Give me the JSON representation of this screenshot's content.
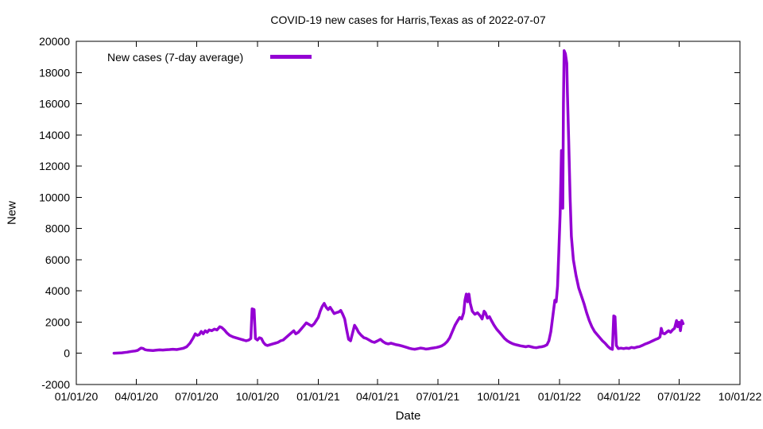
{
  "title": "COVID-19 new cases for Harris,Texas as of 2022-07-07",
  "legend": {
    "label": "New cases (7-day average)"
  },
  "axes": {
    "x_label": "Date",
    "y_label": "New",
    "x_ticks": [
      "01/01/20",
      "04/01/20",
      "07/01/20",
      "10/01/20",
      "01/01/21",
      "04/01/21",
      "07/01/21",
      "10/01/21",
      "01/01/22",
      "04/01/22",
      "07/01/22",
      "10/01/22"
    ],
    "y_ticks": [
      -2000,
      0,
      2000,
      4000,
      6000,
      8000,
      10000,
      12000,
      14000,
      16000,
      18000,
      20000
    ],
    "x_range": [
      "01/01/20",
      "10/01/22"
    ],
    "y_min": -2000,
    "y_max": 20000
  },
  "style": {
    "line_color": "#9400d3",
    "line_width": 3.5,
    "axis_color": "#000000",
    "background": "#ffffff"
  },
  "chart_data": {
    "type": "line",
    "title": "COVID-19 new cases for Harris,Texas as of 2022-07-07",
    "xlabel": "Date",
    "ylabel": "New",
    "ylim": [
      -2000,
      20000
    ],
    "x_range": [
      "01/01/20",
      "10/01/22"
    ],
    "grid": false,
    "legend_position": "top-left-inside",
    "series": [
      {
        "name": "New cases (7-day average)",
        "color": "#9400d3",
        "points": [
          [
            "02/27/20",
            5
          ],
          [
            "03/04/20",
            15
          ],
          [
            "03/10/20",
            30
          ],
          [
            "03/14/20",
            50
          ],
          [
            "03/18/20",
            75
          ],
          [
            "03/22/20",
            105
          ],
          [
            "03/26/20",
            130
          ],
          [
            "03/30/20",
            150
          ],
          [
            "04/03/20",
            190
          ],
          [
            "04/06/20",
            280
          ],
          [
            "04/08/20",
            340
          ],
          [
            "04/11/20",
            310
          ],
          [
            "04/14/20",
            230
          ],
          [
            "04/18/20",
            200
          ],
          [
            "04/22/20",
            190
          ],
          [
            "04/26/20",
            180
          ],
          [
            "05/01/20",
            200
          ],
          [
            "05/06/20",
            220
          ],
          [
            "05/11/20",
            210
          ],
          [
            "05/16/20",
            230
          ],
          [
            "05/21/20",
            240
          ],
          [
            "05/26/20",
            260
          ],
          [
            "06/01/20",
            240
          ],
          [
            "06/06/20",
            280
          ],
          [
            "06/11/20",
            320
          ],
          [
            "06/16/20",
            420
          ],
          [
            "06/21/20",
            650
          ],
          [
            "06/26/20",
            1000
          ],
          [
            "06/29/20",
            1250
          ],
          [
            "07/02/20",
            1150
          ],
          [
            "07/05/20",
            1200
          ],
          [
            "07/08/20",
            1400
          ],
          [
            "07/11/20",
            1250
          ],
          [
            "07/14/20",
            1450
          ],
          [
            "07/17/20",
            1350
          ],
          [
            "07/20/20",
            1500
          ],
          [
            "07/24/20",
            1450
          ],
          [
            "07/28/20",
            1550
          ],
          [
            "08/01/20",
            1500
          ],
          [
            "08/05/20",
            1700
          ],
          [
            "08/08/20",
            1650
          ],
          [
            "08/12/20",
            1500
          ],
          [
            "08/16/20",
            1300
          ],
          [
            "08/20/20",
            1150
          ],
          [
            "08/25/20",
            1050
          ],
          [
            "08/29/20",
            1000
          ],
          [
            "09/02/20",
            950
          ],
          [
            "09/06/20",
            900
          ],
          [
            "09/10/20",
            850
          ],
          [
            "09/14/20",
            800
          ],
          [
            "09/18/20",
            850
          ],
          [
            "09/21/20",
            950
          ],
          [
            "09/23/20",
            2850
          ],
          [
            "09/26/20",
            2800
          ],
          [
            "09/28/20",
            950
          ],
          [
            "10/01/20",
            850
          ],
          [
            "10/04/20",
            1000
          ],
          [
            "10/07/20",
            950
          ],
          [
            "10/10/20",
            700
          ],
          [
            "10/13/20",
            550
          ],
          [
            "10/16/20",
            500
          ],
          [
            "10/20/20",
            550
          ],
          [
            "10/24/20",
            600
          ],
          [
            "10/28/20",
            650
          ],
          [
            "11/01/20",
            700
          ],
          [
            "11/05/20",
            800
          ],
          [
            "11/09/20",
            850
          ],
          [
            "11/13/20",
            1000
          ],
          [
            "11/17/20",
            1150
          ],
          [
            "11/21/20",
            1300
          ],
          [
            "11/25/20",
            1450
          ],
          [
            "11/28/20",
            1250
          ],
          [
            "12/02/20",
            1350
          ],
          [
            "12/06/20",
            1550
          ],
          [
            "12/10/20",
            1750
          ],
          [
            "12/14/20",
            1950
          ],
          [
            "12/18/20",
            1850
          ],
          [
            "12/22/20",
            1750
          ],
          [
            "12/26/20",
            1900
          ],
          [
            "12/29/20",
            2100
          ],
          [
            "01/01/21",
            2300
          ],
          [
            "01/04/21",
            2700
          ],
          [
            "01/07/21",
            3000
          ],
          [
            "01/10/21",
            3200
          ],
          [
            "01/13/21",
            2950
          ],
          [
            "01/16/21",
            2800
          ],
          [
            "01/19/21",
            2950
          ],
          [
            "01/22/21",
            2750
          ],
          [
            "01/25/21",
            2550
          ],
          [
            "01/28/21",
            2600
          ],
          [
            "02/01/21",
            2650
          ],
          [
            "02/04/21",
            2750
          ],
          [
            "02/07/21",
            2500
          ],
          [
            "02/10/21",
            2200
          ],
          [
            "02/13/21",
            1500
          ],
          [
            "02/16/21",
            900
          ],
          [
            "02/19/21",
            800
          ],
          [
            "02/22/21",
            1300
          ],
          [
            "02/25/21",
            1800
          ],
          [
            "02/28/21",
            1600
          ],
          [
            "03/03/21",
            1350
          ],
          [
            "03/07/21",
            1150
          ],
          [
            "03/11/21",
            1000
          ],
          [
            "03/15/21",
            950
          ],
          [
            "03/19/21",
            850
          ],
          [
            "03/23/21",
            750
          ],
          [
            "03/27/21",
            700
          ],
          [
            "04/01/21",
            800
          ],
          [
            "04/05/21",
            900
          ],
          [
            "04/09/21",
            750
          ],
          [
            "04/13/21",
            650
          ],
          [
            "04/17/21",
            600
          ],
          [
            "04/21/21",
            650
          ],
          [
            "04/25/21",
            600
          ],
          [
            "04/29/21",
            550
          ],
          [
            "05/03/21",
            520
          ],
          [
            "05/07/21",
            480
          ],
          [
            "05/11/21",
            430
          ],
          [
            "05/15/21",
            380
          ],
          [
            "05/19/21",
            320
          ],
          [
            "05/23/21",
            280
          ],
          [
            "05/27/21",
            260
          ],
          [
            "06/01/21",
            300
          ],
          [
            "06/05/21",
            340
          ],
          [
            "06/09/21",
            310
          ],
          [
            "06/13/21",
            270
          ],
          [
            "06/17/21",
            290
          ],
          [
            "06/21/21",
            320
          ],
          [
            "06/25/21",
            350
          ],
          [
            "06/29/21",
            380
          ],
          [
            "07/03/21",
            420
          ],
          [
            "07/07/21",
            480
          ],
          [
            "07/11/21",
            580
          ],
          [
            "07/15/21",
            750
          ],
          [
            "07/19/21",
            1000
          ],
          [
            "07/23/21",
            1400
          ],
          [
            "07/27/21",
            1800
          ],
          [
            "07/31/21",
            2100
          ],
          [
            "08/03/21",
            2300
          ],
          [
            "08/06/21",
            2200
          ],
          [
            "08/09/21",
            2600
          ],
          [
            "08/11/21",
            3400
          ],
          [
            "08/13/21",
            3800
          ],
          [
            "08/15/21",
            3300
          ],
          [
            "08/17/21",
            3800
          ],
          [
            "08/19/21",
            3200
          ],
          [
            "08/22/21",
            2700
          ],
          [
            "08/26/21",
            2500
          ],
          [
            "08/30/21",
            2600
          ],
          [
            "09/03/21",
            2400
          ],
          [
            "09/06/21",
            2200
          ],
          [
            "09/09/21",
            2700
          ],
          [
            "09/11/21",
            2600
          ],
          [
            "09/14/21",
            2250
          ],
          [
            "09/17/21",
            2350
          ],
          [
            "09/20/21",
            2100
          ],
          [
            "09/24/21",
            1800
          ],
          [
            "09/28/21",
            1550
          ],
          [
            "10/02/21",
            1350
          ],
          [
            "10/06/21",
            1150
          ],
          [
            "10/10/21",
            950
          ],
          [
            "10/14/21",
            800
          ],
          [
            "10/18/21",
            700
          ],
          [
            "10/22/21",
            620
          ],
          [
            "10/26/21",
            560
          ],
          [
            "10/30/21",
            520
          ],
          [
            "11/03/21",
            480
          ],
          [
            "11/07/21",
            450
          ],
          [
            "11/11/21",
            420
          ],
          [
            "11/15/21",
            460
          ],
          [
            "11/19/21",
            420
          ],
          [
            "11/23/21",
            380
          ],
          [
            "11/27/21",
            360
          ],
          [
            "12/01/21",
            400
          ],
          [
            "12/05/21",
            420
          ],
          [
            "12/09/21",
            460
          ],
          [
            "12/13/21",
            550
          ],
          [
            "12/16/21",
            800
          ],
          [
            "12/19/21",
            1400
          ],
          [
            "12/22/21",
            2400
          ],
          [
            "12/25/21",
            3400
          ],
          [
            "12/27/21",
            3300
          ],
          [
            "12/29/21",
            4300
          ],
          [
            "12/31/21",
            6500
          ],
          [
            "01/02/22",
            9000
          ],
          [
            "01/04/22",
            13000
          ],
          [
            "01/05/22",
            12800
          ],
          [
            "01/06/22",
            9300
          ],
          [
            "01/07/22",
            16000
          ],
          [
            "01/08/22",
            19400
          ],
          [
            "01/10/22",
            19200
          ],
          [
            "01/12/22",
            18600
          ],
          [
            "01/13/22",
            16700
          ],
          [
            "01/15/22",
            13500
          ],
          [
            "01/17/22",
            10000
          ],
          [
            "01/19/22",
            7500
          ],
          [
            "01/22/22",
            6000
          ],
          [
            "01/26/22",
            5000
          ],
          [
            "01/30/22",
            4200
          ],
          [
            "02/03/22",
            3700
          ],
          [
            "02/07/22",
            3200
          ],
          [
            "02/11/22",
            2600
          ],
          [
            "02/15/22",
            2100
          ],
          [
            "02/19/22",
            1700
          ],
          [
            "02/23/22",
            1400
          ],
          [
            "02/27/22",
            1200
          ],
          [
            "03/03/22",
            1000
          ],
          [
            "03/07/22",
            800
          ],
          [
            "03/11/22",
            650
          ],
          [
            "03/15/22",
            450
          ],
          [
            "03/19/22",
            300
          ],
          [
            "03/22/22",
            250
          ],
          [
            "03/24/22",
            2400
          ],
          [
            "03/26/22",
            2350
          ],
          [
            "03/28/22",
            500
          ],
          [
            "03/31/22",
            300
          ],
          [
            "04/04/22",
            330
          ],
          [
            "04/08/22",
            300
          ],
          [
            "04/12/22",
            340
          ],
          [
            "04/16/22",
            310
          ],
          [
            "04/20/22",
            380
          ],
          [
            "04/24/22",
            350
          ],
          [
            "04/28/22",
            400
          ],
          [
            "05/02/22",
            430
          ],
          [
            "05/06/22",
            500
          ],
          [
            "05/10/22",
            580
          ],
          [
            "05/14/22",
            650
          ],
          [
            "05/18/22",
            720
          ],
          [
            "05/22/22",
            800
          ],
          [
            "05/26/22",
            880
          ],
          [
            "05/30/22",
            950
          ],
          [
            "06/02/22",
            1050
          ],
          [
            "06/04/22",
            1600
          ],
          [
            "06/06/22",
            1300
          ],
          [
            "06/09/22",
            1250
          ],
          [
            "06/12/22",
            1350
          ],
          [
            "06/15/22",
            1450
          ],
          [
            "06/18/22",
            1350
          ],
          [
            "06/21/22",
            1500
          ],
          [
            "06/24/22",
            1600
          ],
          [
            "06/27/22",
            2100
          ],
          [
            "06/29/22",
            1700
          ],
          [
            "07/01/22",
            2000
          ],
          [
            "07/03/22",
            1450
          ],
          [
            "07/05/22",
            2100
          ],
          [
            "07/07/22",
            1900
          ]
        ]
      }
    ]
  }
}
